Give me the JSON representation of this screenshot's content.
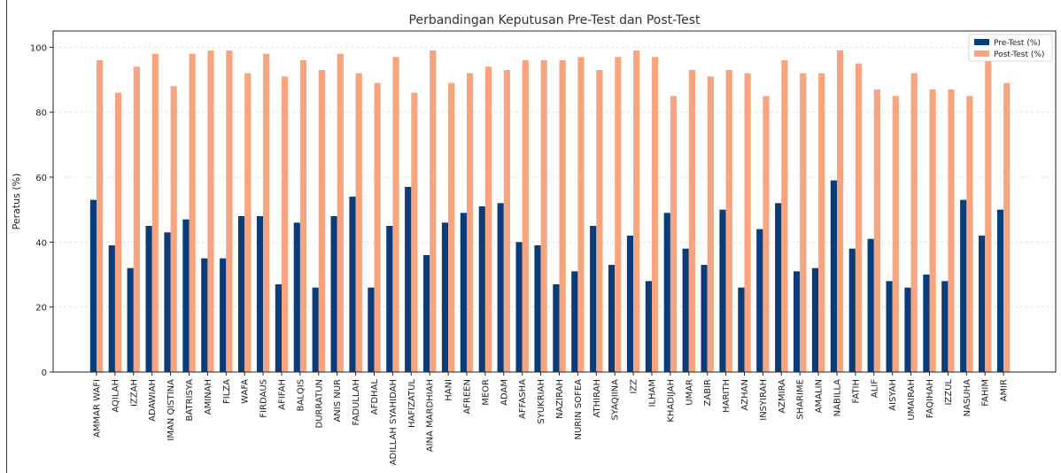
{
  "chart_data": {
    "type": "bar",
    "title": "Perbandingan Keputusan Pre-Test dan Post-Test",
    "xlabel": "",
    "ylabel": "Peratus (%)",
    "ylim": [
      0,
      105
    ],
    "yticks": [
      0,
      20,
      40,
      60,
      80,
      100
    ],
    "grid": true,
    "legend_position": "top-right",
    "categories": [
      "AMMAR WAFI",
      "AQILAH",
      "IZZAH",
      "ADAWIAH",
      "IMAN QISTINA",
      "BATRISYA",
      "AMINAH",
      "FILZA",
      "WAFA",
      "FIRDAUS",
      "AFIFAH",
      "BALQIS",
      "DURRATUN",
      "ANIS NUR",
      "FADULLAH",
      "AFDHAL",
      "ADILLAH SYAHIDAH",
      "HAFIZATUL",
      "AINA MARDHIAH",
      "HANI",
      "AFREEN",
      "MEOR",
      "ADAM",
      "AFFASHA",
      "SYUKRIAH",
      "NAZIRAH",
      "NURIN SOFEA",
      "ATHIRAH",
      "SYAQIINA",
      "IZZ",
      "ILHAM",
      "KHADIJAH",
      "UMAR",
      "ZABIR",
      "HARITH",
      "AZHAN",
      "INSYIRAH",
      "AZMIRA",
      "SHARIME",
      "AMALIN",
      "NABILLA",
      "FATIH",
      "ALIF",
      "AISYAH",
      "UMAIRAH",
      "FAQIHAH",
      "IZZUL",
      "NASUHA",
      "FAHIM",
      "AMIR"
    ],
    "series": [
      {
        "name": "Pre-Test (%)",
        "color": "#0b3c7a",
        "values": [
          53,
          39,
          32,
          45,
          43,
          47,
          35,
          35,
          48,
          48,
          27,
          46,
          26,
          48,
          54,
          26,
          45,
          57,
          36,
          46,
          49,
          51,
          52,
          40,
          39,
          27,
          31,
          45,
          33,
          42,
          28,
          49,
          38,
          33,
          50,
          26,
          44,
          52,
          31,
          32,
          59,
          38,
          41,
          28,
          26,
          30,
          28,
          53,
          42,
          50
        ]
      },
      {
        "name": "Post-Test (%)",
        "color": "#f8a47e",
        "values": [
          96,
          86,
          94,
          98,
          88,
          98,
          99,
          99,
          92,
          98,
          91,
          96,
          93,
          98,
          92,
          89,
          97,
          86,
          99,
          89,
          92,
          94,
          93,
          96,
          96,
          96,
          97,
          93,
          97,
          99,
          97,
          85,
          93,
          91,
          93,
          92,
          85,
          96,
          92,
          92,
          99,
          95,
          87,
          85,
          92,
          87,
          87,
          85,
          96,
          89
        ]
      }
    ]
  }
}
